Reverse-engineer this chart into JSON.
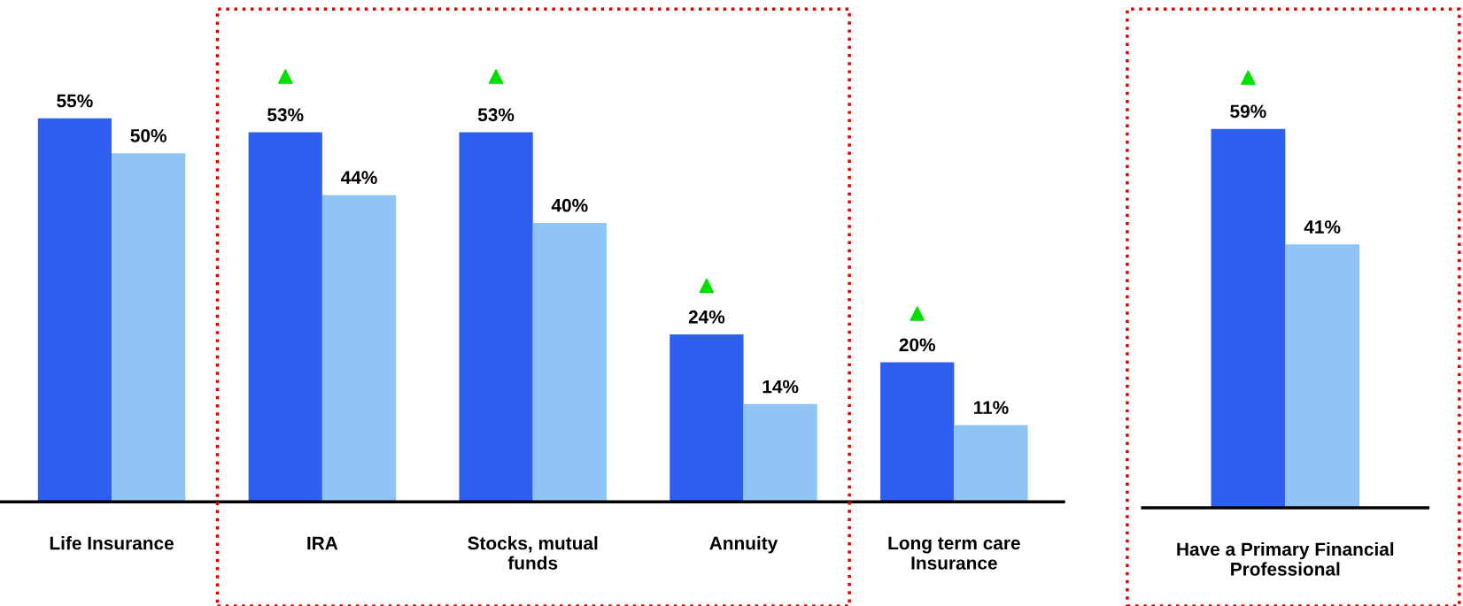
{
  "chart_data": [
    {
      "type": "bar",
      "categories": [
        "Life Insurance",
        "IRA",
        "Stocks, mutual\nfunds",
        "Annuity",
        "Long term care\nInsurance"
      ],
      "series": [
        {
          "color": "#2f5ff0",
          "values": [
            55,
            53,
            53,
            24,
            20
          ],
          "value_labels": [
            "55%",
            "53%",
            "53%",
            "24%",
            "20%"
          ]
        },
        {
          "color": "#90c4f4",
          "values": [
            50,
            44,
            40,
            14,
            11
          ],
          "value_labels": [
            "50%",
            "44%",
            "40%",
            "14%",
            "11%"
          ]
        },
        {
          "type": "scatter",
          "marker": "triangle",
          "color": "#00e000",
          "values": [
            null,
            61,
            61,
            31,
            27
          ]
        }
      ]
    },
    {
      "type": "bar",
      "categories": [
        "Have a Primary Financial\nProfessional"
      ],
      "series": [
        {
          "color": "#2f5ff0",
          "values": [
            59
          ],
          "value_labels": [
            "59%"
          ]
        },
        {
          "color": "#90c4f4",
          "values": [
            41
          ],
          "value_labels": [
            "41%"
          ]
        },
        {
          "type": "scatter",
          "marker": "triangle",
          "color": "#00e000",
          "values": [
            67
          ]
        }
      ]
    }
  ]
}
